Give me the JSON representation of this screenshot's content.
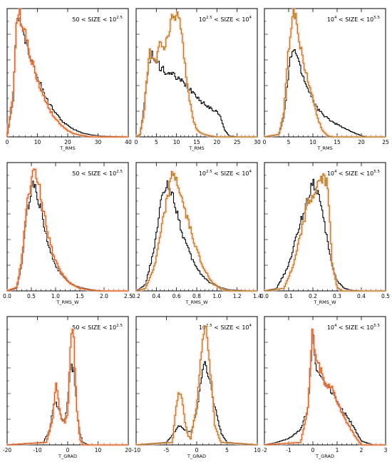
{
  "colors": {
    "black": "#000000",
    "orange": "#e05a10",
    "gold": "#b87818",
    "frame": "#000000"
  },
  "chart_data": [
    {
      "type": "line",
      "xlabel": "T_RMS",
      "ticks": [
        "0",
        "10",
        "20",
        "30",
        "40"
      ],
      "xlim": [
        0,
        40
      ],
      "label": {
        "pre": "50 < SIZE < 10",
        "exp": "2.5",
        "post": ""
      },
      "series": [
        {
          "color": "black",
          "x": [
            0,
            2,
            3,
            4,
            5,
            6,
            8,
            10,
            12,
            14,
            16,
            18,
            20,
            22,
            25,
            28,
            32,
            36,
            40
          ],
          "y": [
            0,
            0.3,
            0.85,
            0.95,
            0.88,
            0.78,
            0.62,
            0.48,
            0.36,
            0.26,
            0.19,
            0.13,
            0.09,
            0.06,
            0.03,
            0.015,
            0.005,
            0.002,
            0
          ]
        },
        {
          "color": "orange",
          "x": [
            0,
            2,
            3,
            4,
            5,
            6,
            8,
            10,
            12,
            14,
            16,
            18,
            20,
            22,
            25,
            28
          ],
          "y": [
            0,
            0.35,
            0.88,
            0.97,
            0.92,
            0.82,
            0.62,
            0.45,
            0.32,
            0.22,
            0.14,
            0.09,
            0.05,
            0.025,
            0.01,
            0
          ]
        }
      ]
    },
    {
      "type": "line",
      "xlabel": "T_RMS",
      "ticks": [
        "0",
        "5",
        "10",
        "15",
        "20",
        "25",
        "30"
      ],
      "xlim": [
        0,
        30
      ],
      "label": {
        "pre": "10",
        "exp": "2.5",
        "post": " < SIZE < 10",
        "exp2": "4"
      },
      "series": [
        {
          "color": "black",
          "x": [
            0,
            1,
            2,
            3,
            4,
            5,
            6,
            7,
            8,
            9,
            10,
            12,
            14,
            15,
            16,
            18,
            20,
            21,
            22,
            23,
            25
          ],
          "y": [
            0,
            0.02,
            0.25,
            0.55,
            0.65,
            0.6,
            0.55,
            0.53,
            0.51,
            0.49,
            0.47,
            0.42,
            0.36,
            0.33,
            0.28,
            0.24,
            0.2,
            0.15,
            0.05,
            0.01,
            0
          ]
        },
        {
          "color": "gold",
          "x": [
            0,
            1,
            2,
            3,
            3.5,
            4,
            5,
            6,
            7,
            8,
            9,
            10,
            11,
            12,
            13,
            14,
            15,
            16,
            18,
            20
          ],
          "y": [
            0,
            0.02,
            0.2,
            0.6,
            0.7,
            0.6,
            0.6,
            0.75,
            0.7,
            0.8,
            0.95,
            0.98,
            0.9,
            0.6,
            0.35,
            0.15,
            0.06,
            0.03,
            0.01,
            0
          ]
        }
      ]
    },
    {
      "type": "line",
      "xlabel": "T_RMS",
      "ticks": [
        "0",
        "5",
        "10",
        "15",
        "20",
        "25"
      ],
      "xlim": [
        0,
        25
      ],
      "label": {
        "pre": "10",
        "exp": "4",
        "post": " < SIZE < 10",
        "exp2": "5.5"
      },
      "series": [
        {
          "color": "black",
          "x": [
            0,
            3,
            4,
            5,
            5.5,
            6,
            6.5,
            7,
            8,
            9,
            10,
            11,
            12,
            14,
            16,
            18,
            20,
            21
          ],
          "y": [
            0,
            0.02,
            0.15,
            0.5,
            0.65,
            0.7,
            0.68,
            0.6,
            0.48,
            0.38,
            0.3,
            0.22,
            0.18,
            0.12,
            0.08,
            0.04,
            0.01,
            0
          ]
        },
        {
          "color": "gold",
          "x": [
            0,
            3,
            4,
            5,
            5.5,
            6,
            6.5,
            7,
            7.5,
            8,
            9,
            10,
            11,
            12,
            13,
            14
          ],
          "y": [
            0,
            0.02,
            0.2,
            0.7,
            0.9,
            0.98,
            0.95,
            0.85,
            0.7,
            0.6,
            0.45,
            0.3,
            0.15,
            0.05,
            0.01,
            0
          ]
        }
      ]
    },
    {
      "type": "line",
      "xlabel": "T_RMS_W",
      "ticks": [
        "0.0",
        "0.5",
        "1.0",
        "1.5",
        "2.0",
        "2.5"
      ],
      "xlim": [
        0,
        2.5
      ],
      "label": {
        "pre": "50 < SIZE < 10",
        "exp": "2.5",
        "post": ""
      },
      "series": [
        {
          "color": "black",
          "x": [
            0,
            0.2,
            0.3,
            0.4,
            0.5,
            0.55,
            0.6,
            0.7,
            0.8,
            0.9,
            1.0,
            1.2,
            1.4,
            1.6,
            1.8,
            2.0
          ],
          "y": [
            0,
            0.02,
            0.2,
            0.6,
            0.82,
            0.85,
            0.8,
            0.65,
            0.45,
            0.3,
            0.2,
            0.09,
            0.04,
            0.02,
            0.005,
            0
          ]
        },
        {
          "color": "orange",
          "x": [
            0,
            0.2,
            0.3,
            0.4,
            0.5,
            0.58,
            0.65,
            0.75,
            0.85,
            0.95,
            1.1,
            1.3,
            1.5,
            1.7,
            1.9
          ],
          "y": [
            0,
            0.03,
            0.25,
            0.65,
            0.9,
            0.95,
            0.85,
            0.65,
            0.45,
            0.3,
            0.15,
            0.06,
            0.02,
            0.008,
            0
          ]
        }
      ]
    },
    {
      "type": "line",
      "xlabel": "T_RMS_W",
      "ticks": [
        "0.2",
        "0.4",
        "0.6",
        "0.8",
        "1.0",
        "1.2",
        "1.4"
      ],
      "xlim": [
        0.1,
        1.4
      ],
      "label": {
        "pre": "10",
        "exp": "2.5",
        "post": " < SIZE < 10",
        "exp2": "4"
      },
      "series": [
        {
          "color": "black",
          "x": [
            0.1,
            0.2,
            0.3,
            0.35,
            0.4,
            0.45,
            0.5,
            0.6,
            0.7,
            0.8,
            0.9,
            1.0,
            1.1,
            1.2,
            1.3
          ],
          "y": [
            0,
            0.05,
            0.35,
            0.65,
            0.8,
            0.85,
            0.75,
            0.45,
            0.25,
            0.13,
            0.06,
            0.03,
            0.01,
            0.005,
            0
          ]
        },
        {
          "color": "gold",
          "x": [
            0.1,
            0.2,
            0.3,
            0.4,
            0.45,
            0.5,
            0.55,
            0.6,
            0.7,
            0.8,
            0.9,
            1.0,
            1.1
          ],
          "y": [
            0,
            0.02,
            0.2,
            0.6,
            0.8,
            0.95,
            0.85,
            0.7,
            0.45,
            0.22,
            0.08,
            0.02,
            0
          ]
        }
      ]
    },
    {
      "type": "line",
      "xlabel": "T_RMS_W",
      "ticks": [
        "0.0",
        "0.1",
        "0.2",
        "0.3",
        "0.4",
        "0.5"
      ],
      "xlim": [
        0,
        0.5
      ],
      "label": {
        "pre": "10",
        "exp": "4",
        "post": " < SIZE < 10",
        "exp2": "5.5"
      },
      "series": [
        {
          "color": "black",
          "x": [
            0,
            0.05,
            0.1,
            0.12,
            0.15,
            0.18,
            0.2,
            0.22,
            0.24,
            0.26,
            0.28,
            0.3,
            0.33,
            0.36,
            0.4
          ],
          "y": [
            0,
            0.02,
            0.2,
            0.35,
            0.55,
            0.75,
            0.88,
            0.8,
            0.6,
            0.4,
            0.2,
            0.08,
            0.02,
            0.005,
            0
          ]
        },
        {
          "color": "gold",
          "x": [
            0,
            0.08,
            0.12,
            0.15,
            0.18,
            0.2,
            0.22,
            0.24,
            0.26,
            0.27,
            0.28,
            0.3,
            0.32
          ],
          "y": [
            0,
            0.02,
            0.2,
            0.45,
            0.7,
            0.75,
            0.85,
            0.9,
            0.85,
            0.6,
            0.2,
            0.03,
            0
          ]
        }
      ]
    },
    {
      "type": "line",
      "xlabel": "T_GRAD",
      "ticks": [
        "-20",
        "-10",
        "0",
        "10",
        "20"
      ],
      "xlim": [
        -20,
        20
      ],
      "label": {
        "pre": "50 < SIZE < 10",
        "exp": "2.5",
        "post": ""
      },
      "series": [
        {
          "color": "black",
          "x": [
            -20,
            -8,
            -6,
            -5,
            -4,
            -3,
            -2,
            -1,
            0,
            1,
            2,
            3,
            4,
            5,
            7,
            20
          ],
          "y": [
            0,
            0.02,
            0.12,
            0.28,
            0.35,
            0.3,
            0.2,
            0.2,
            0.35,
            0.65,
            0.6,
            0.3,
            0.1,
            0.02,
            0,
            0
          ]
        },
        {
          "color": "orange",
          "x": [
            -20,
            -7,
            -5,
            -4,
            -3.5,
            -3,
            -2,
            -1,
            0,
            1,
            1.5,
            2,
            3,
            4,
            5,
            20
          ],
          "y": [
            0,
            0.02,
            0.2,
            0.48,
            0.45,
            0.35,
            0.2,
            0.18,
            0.25,
            0.8,
            1.0,
            0.85,
            0.3,
            0.05,
            0,
            0
          ]
        }
      ]
    },
    {
      "type": "line",
      "xlabel": "T_GRAD",
      "ticks": [
        "-10",
        "-5",
        "0",
        "5",
        "10"
      ],
      "xlim": [
        -10,
        10
      ],
      "label": {
        "pre": "10",
        "exp": "2.5",
        "post": " < SIZE < 10",
        "exp2": "4"
      },
      "series": [
        {
          "color": "black",
          "x": [
            -10,
            -5,
            -4,
            -3,
            -2.5,
            -2,
            -1,
            0,
            0.5,
            1,
            1.5,
            2,
            3,
            4,
            5,
            10
          ],
          "y": [
            0,
            0.02,
            0.08,
            0.15,
            0.14,
            0.12,
            0.1,
            0.25,
            0.45,
            0.6,
            0.65,
            0.55,
            0.3,
            0.1,
            0.02,
            0
          ]
        },
        {
          "color": "gold",
          "x": [
            -10,
            -4,
            -3.5,
            -3,
            -2.5,
            -2,
            -1.5,
            -1,
            0,
            0.5,
            1,
            1.5,
            2,
            2.5,
            3,
            4,
            10
          ],
          "y": [
            0,
            0.02,
            0.25,
            0.43,
            0.4,
            0.2,
            0.08,
            0.05,
            0.3,
            0.6,
            0.85,
            0.95,
            0.75,
            0.45,
            0.15,
            0.02,
            0
          ]
        }
      ]
    },
    {
      "type": "line",
      "xlabel": "T_GRAD",
      "ticks": [
        "-2",
        "-1",
        "0",
        "1",
        "2",
        "3"
      ],
      "xlim": [
        -2,
        3
      ],
      "label": {
        "pre": "10",
        "exp": "4",
        "post": " < SIZE < 10",
        "exp2": "5.5"
      },
      "series": [
        {
          "color": "black",
          "x": [
            -2,
            -1.5,
            -1,
            -0.5,
            -0.2,
            0,
            0.1,
            0.3,
            0.5,
            0.7,
            1.0,
            1.3,
            1.5,
            1.8,
            2.0,
            2.5
          ],
          "y": [
            0,
            0.02,
            0.05,
            0.12,
            0.3,
            0.9,
            0.65,
            0.55,
            0.5,
            0.45,
            0.35,
            0.25,
            0.2,
            0.1,
            0.03,
            0
          ]
        },
        {
          "color": "orange",
          "x": [
            -2,
            -0.5,
            -0.2,
            0,
            0.1,
            0.3,
            0.5,
            0.8,
            1.0,
            1.2,
            1.5,
            1.8,
            2.0
          ],
          "y": [
            0,
            0.02,
            0.3,
            0.95,
            0.7,
            0.6,
            0.5,
            0.45,
            0.35,
            0.25,
            0.15,
            0.05,
            0
          ]
        }
      ]
    }
  ]
}
